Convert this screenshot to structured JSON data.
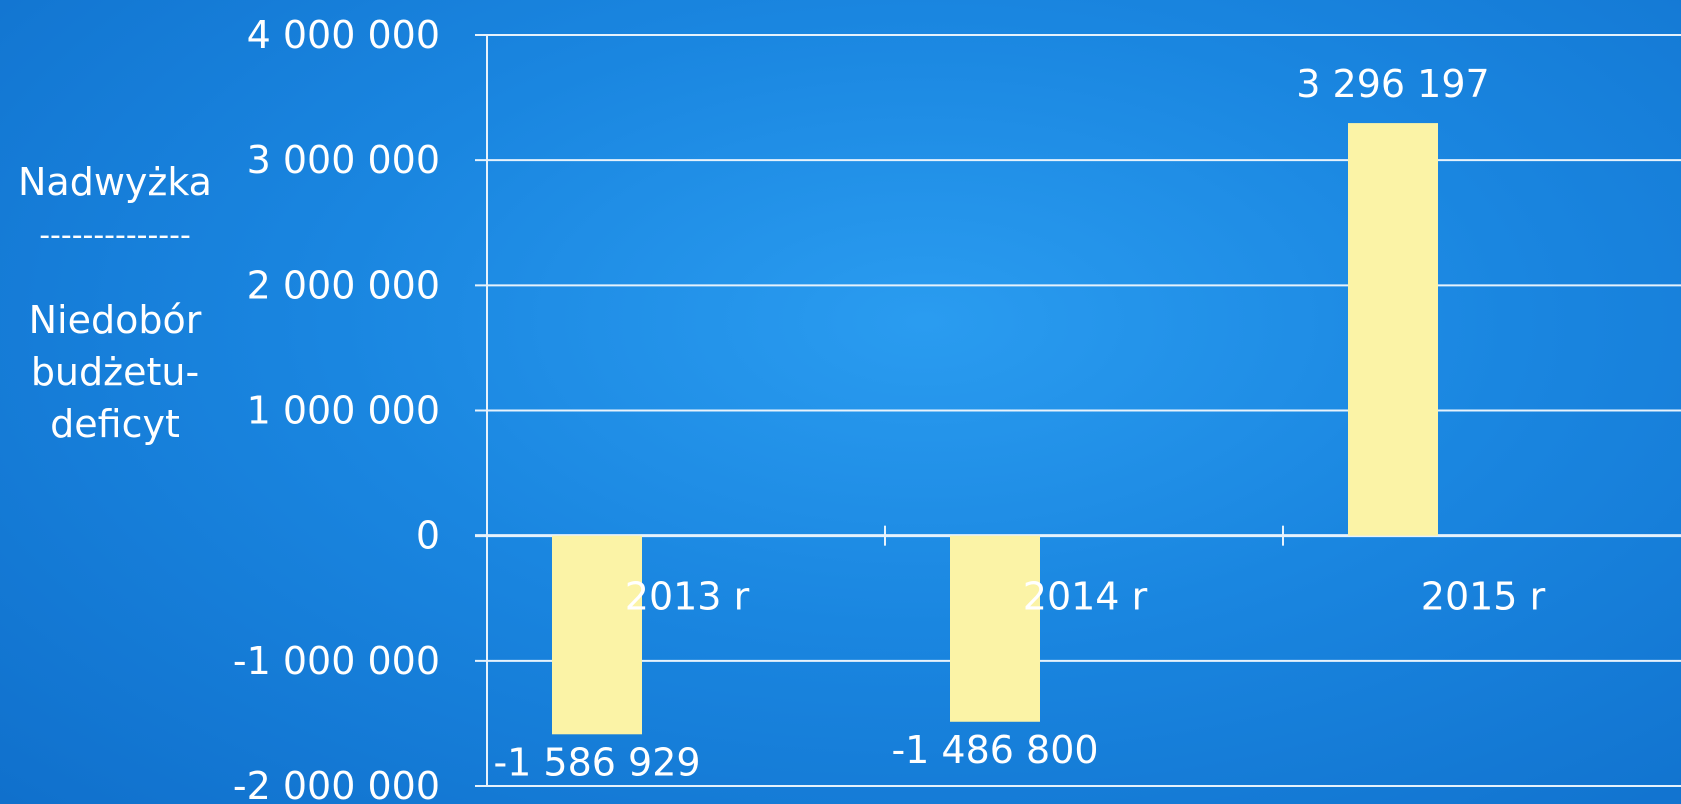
{
  "chart_data": {
    "type": "bar",
    "categories": [
      "2013 r",
      "2014 r",
      "2015 r"
    ],
    "values": [
      -1586929,
      -1486800,
      3296197
    ],
    "data_labels": [
      "-1 586 929",
      "-1 486 800",
      "3 296 197"
    ],
    "ylabel_lines": [
      "Nadwyżka",
      "--------------",
      "Niedobór",
      "budżetu-",
      "deficyt"
    ],
    "yticks": [
      -2000000,
      -1000000,
      0,
      1000000,
      2000000,
      3000000,
      4000000
    ],
    "ytick_labels": [
      "-2 000 000",
      "-1 000 000",
      "0",
      "1 000 000",
      "2 000 000",
      "3 000 000",
      "4 000 000"
    ],
    "ylim": [
      -2000000,
      4000000
    ],
    "grid": true,
    "colors": {
      "bar": "#fbf3a6",
      "grid": "#e6f2fc",
      "text": "#ffffff"
    }
  }
}
